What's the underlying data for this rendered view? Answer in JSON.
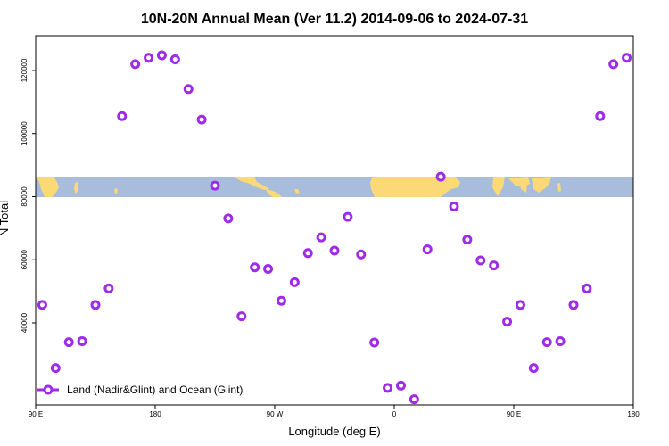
{
  "chart_data": {
    "type": "scatter",
    "title": "10N-20N Annual Mean (Ver 11.2)   2014-09-06 to 2024-07-31",
    "xlabel": "Longitude (deg E)",
    "ylabel": "N Total",
    "xlim": [
      90,
      450
    ],
    "ylim": [
      14000,
      131000
    ],
    "x_ticks": [
      {
        "value": 90,
        "label": "90 E"
      },
      {
        "value": 162,
        "label": "180"
      },
      {
        "value": 234,
        "label": "90 W"
      },
      {
        "value": 306,
        "label": "0"
      },
      {
        "value": 378,
        "label": "90 E"
      },
      {
        "value": 450,
        "label": "180"
      }
    ],
    "y_ticks": [
      {
        "value": 40000,
        "label": "40000"
      },
      {
        "value": 60000,
        "label": "60000"
      },
      {
        "value": 80000,
        "label": "80000"
      },
      {
        "value": 100000,
        "label": "100000"
      },
      {
        "value": 120000,
        "label": "120000"
      }
    ],
    "legend": {
      "position": "bottom-left",
      "label": "Land (Nadir&Glint) and Ocean (Glint)"
    },
    "map_band": {
      "y_range": [
        63500,
        70000
      ],
      "ocean_color": "#a7bddb",
      "land_color": "#fbd977"
    },
    "colors": {
      "marker": "#9f2bea"
    },
    "series": [
      {
        "name": "Land (Nadir&Glint) and Ocean (Glint)",
        "x": [
          94,
          102,
          110,
          118,
          126,
          134,
          142,
          150,
          158,
          166,
          174,
          182,
          190,
          198,
          206,
          214,
          222,
          230,
          238,
          246,
          254,
          262,
          270,
          278,
          286,
          294,
          302,
          310,
          318,
          326,
          334,
          342,
          350,
          358,
          366,
          374,
          382,
          390,
          398,
          406,
          414,
          422,
          430,
          438,
          446
        ],
        "y": [
          45700,
          25700,
          33900,
          34200,
          45700,
          50900,
          105500,
          122000,
          124000,
          124800,
          123500,
          114100,
          104400,
          83500,
          73100,
          42100,
          57600,
          57100,
          47000,
          52900,
          62100,
          67100,
          62900,
          73600,
          61700,
          33800,
          19400,
          20100,
          15800,
          63300,
          86300,
          76900,
          66400,
          59800,
          58200,
          40400,
          45700,
          25700,
          33900,
          34200,
          45700,
          50900,
          105500,
          122000,
          124000
        ]
      }
    ]
  }
}
